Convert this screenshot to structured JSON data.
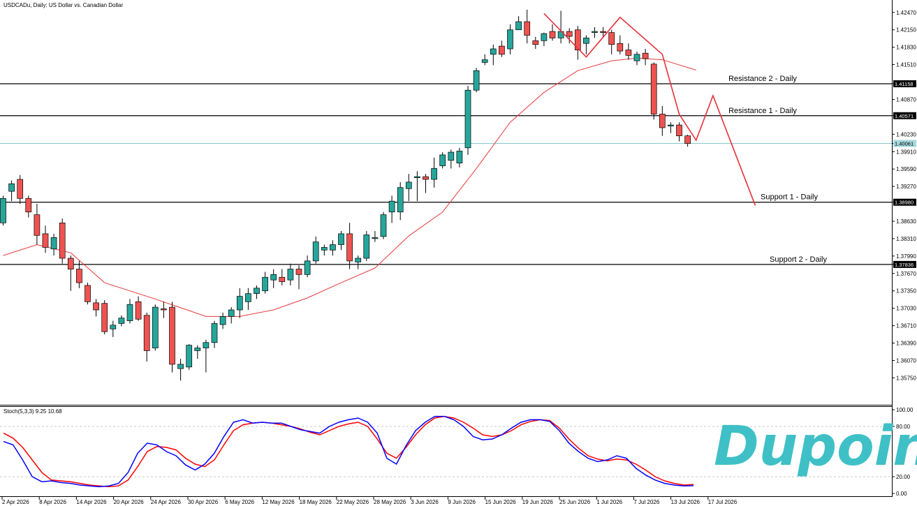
{
  "chart_data": [
    {
      "type": "candlestick",
      "title": "USDCADu, Daily: US Dollar vs. Canadian Dollar",
      "price_axis_ticks": [
        "1.42470",
        "1.42150",
        "1.41830",
        "1.41510",
        "1.41158",
        "1.40870",
        "1.40571",
        "1.40230",
        "1.40061",
        "1.39910",
        "1.39590",
        "1.39270",
        "1.38980",
        "1.38630",
        "1.38310",
        "1.37990",
        "1.37836",
        "1.37670",
        "1.37350",
        "1.37030",
        "1.36710",
        "1.36390",
        "1.36070",
        "1.35750"
      ],
      "time_axis_ticks": [
        "2 Apr 2026",
        "8 Apr 2026",
        "14 Apr 2026",
        "20 Apr 2026",
        "24 Apr 2026",
        "30 Apr 2026",
        "6 May 2026",
        "12 May 2026",
        "18 May 2026",
        "22 May 2026",
        "28 May 2026",
        "3 Jun 2026",
        "9 Jun 2026",
        "15 Jun 2026",
        "19 Jun 2026",
        "25 Jun 2026",
        "1 Jul 2026",
        "7 Jul 2026",
        "13 Jul 2026",
        "17 Jul 2026"
      ],
      "ylim": [
        1.3555,
        1.4257
      ],
      "current_price": "1.40061",
      "levels": [
        {
          "name": "Resistance 2 - Daily",
          "value": 1.41158,
          "tag": "1.41158"
        },
        {
          "name": "Resistance 1 - Daily",
          "value": 1.40571,
          "tag": "1.40571"
        },
        {
          "name": "Support 1 - Daily",
          "value": 1.3898,
          "tag": "1.38980"
        },
        {
          "name": "Support 2 - Daily",
          "value": 1.37836,
          "tag": "1.37836"
        }
      ],
      "candles": [
        [
          1.386,
          1.391,
          1.3855,
          1.3905
        ],
        [
          1.3918,
          1.3938,
          1.39,
          1.3932
        ],
        [
          1.394,
          1.3948,
          1.3895,
          1.3905
        ],
        [
          1.3905,
          1.391,
          1.387,
          1.388
        ],
        [
          1.3875,
          1.3895,
          1.382,
          1.3837
        ],
        [
          1.384,
          1.3855,
          1.3805,
          1.3815
        ],
        [
          1.3812,
          1.384,
          1.38,
          1.3833
        ],
        [
          1.386,
          1.3868,
          1.3785,
          1.3795
        ],
        [
          1.3795,
          1.38,
          1.3735,
          1.3775
        ],
        [
          1.3775,
          1.379,
          1.374,
          1.375
        ],
        [
          1.3745,
          1.375,
          1.371,
          1.3715
        ],
        [
          1.3713,
          1.372,
          1.3688,
          1.37
        ],
        [
          1.3712,
          1.3718,
          1.3655,
          1.366
        ],
        [
          1.3665,
          1.368,
          1.365,
          1.3672
        ],
        [
          1.3675,
          1.369,
          1.367,
          1.3685
        ],
        [
          1.368,
          1.372,
          1.3675,
          1.371
        ],
        [
          1.3715,
          1.3725,
          1.368,
          1.3683
        ],
        [
          1.369,
          1.3695,
          1.3605,
          1.3625
        ],
        [
          1.363,
          1.371,
          1.3625,
          1.3705
        ],
        [
          1.3702,
          1.3715,
          1.3685,
          1.37
        ],
        [
          1.3705,
          1.3715,
          1.3585,
          1.36
        ],
        [
          1.3592,
          1.361,
          1.357,
          1.36
        ],
        [
          1.3595,
          1.3637,
          1.359,
          1.3635
        ],
        [
          1.3625,
          1.3635,
          1.361,
          1.363
        ],
        [
          1.363,
          1.3645,
          1.3585,
          1.364
        ],
        [
          1.364,
          1.368,
          1.363,
          1.3675
        ],
        [
          1.3673,
          1.3695,
          1.3665,
          1.3688
        ],
        [
          1.3688,
          1.3705,
          1.3675,
          1.37
        ],
        [
          1.37,
          1.374,
          1.3685,
          1.3725
        ],
        [
          1.3715,
          1.374,
          1.37,
          1.373
        ],
        [
          1.373,
          1.3745,
          1.372,
          1.374
        ],
        [
          1.3735,
          1.377,
          1.373,
          1.376
        ],
        [
          1.3755,
          1.3775,
          1.374,
          1.3765
        ],
        [
          1.376,
          1.3775,
          1.3745,
          1.3752
        ],
        [
          1.3755,
          1.3785,
          1.3745,
          1.3775
        ],
        [
          1.3775,
          1.3782,
          1.3738,
          1.3765
        ],
        [
          1.3765,
          1.38,
          1.376,
          1.379
        ],
        [
          1.379,
          1.3835,
          1.3785,
          1.3825
        ],
        [
          1.381,
          1.382,
          1.38,
          1.3815
        ],
        [
          1.381,
          1.3828,
          1.38,
          1.382
        ],
        [
          1.382,
          1.3845,
          1.381,
          1.384
        ],
        [
          1.384,
          1.386,
          1.3775,
          1.379
        ],
        [
          1.3788,
          1.38,
          1.3775,
          1.3795
        ],
        [
          1.3795,
          1.3845,
          1.379,
          1.3838
        ],
        [
          1.3833,
          1.3845,
          1.3825,
          1.3833
        ],
        [
          1.3835,
          1.388,
          1.383,
          1.3875
        ],
        [
          1.388,
          1.391,
          1.386,
          1.39
        ],
        [
          1.388,
          1.3935,
          1.3865,
          1.3925
        ],
        [
          1.3923,
          1.395,
          1.39,
          1.3935
        ],
        [
          1.3945,
          1.3955,
          1.39,
          1.3945
        ],
        [
          1.3945,
          1.395,
          1.3915,
          1.394
        ],
        [
          1.394,
          1.398,
          1.3925,
          1.396
        ],
        [
          1.3965,
          1.399,
          1.396,
          1.3985
        ],
        [
          1.3975,
          1.3995,
          1.396,
          1.399
        ],
        [
          1.397,
          1.3998,
          1.3962,
          1.3992
        ],
        [
          1.3998,
          1.4112,
          1.3985,
          1.4104
        ],
        [
          1.4104,
          1.4145,
          1.41,
          1.414
        ],
        [
          1.4155,
          1.417,
          1.415,
          1.416
        ],
        [
          1.417,
          1.4188,
          1.415,
          1.418
        ],
        [
          1.4185,
          1.4195,
          1.4165,
          1.417
        ],
        [
          1.418,
          1.4225,
          1.417,
          1.4215
        ],
        [
          1.4215,
          1.424,
          1.4215,
          1.423
        ],
        [
          1.423,
          1.4252,
          1.419,
          1.4205
        ],
        [
          1.4195,
          1.4202,
          1.418,
          1.4188
        ],
        [
          1.4195,
          1.421,
          1.4185,
          1.4208
        ],
        [
          1.4212,
          1.4225,
          1.4195,
          1.42
        ],
        [
          1.42,
          1.425,
          1.419,
          1.4212
        ],
        [
          1.4212,
          1.4218,
          1.419,
          1.4203
        ],
        [
          1.4215,
          1.4222,
          1.416,
          1.4178
        ],
        [
          1.419,
          1.4205,
          1.417,
          1.42
        ],
        [
          1.421,
          1.422,
          1.42,
          1.4212
        ],
        [
          1.4212,
          1.422,
          1.42,
          1.421
        ],
        [
          1.421,
          1.4215,
          1.417,
          1.4188
        ],
        [
          1.419,
          1.4205,
          1.417,
          1.4176
        ],
        [
          1.4178,
          1.419,
          1.416,
          1.4168
        ],
        [
          1.4158,
          1.4175,
          1.415,
          1.417
        ],
        [
          1.4172,
          1.418,
          1.415,
          1.4162
        ],
        [
          1.4152,
          1.4155,
          1.405,
          1.406
        ],
        [
          1.406,
          1.4075,
          1.402,
          1.4035
        ],
        [
          1.404,
          1.4045,
          1.4025,
          1.404
        ],
        [
          1.404,
          1.4045,
          1.401,
          1.402
        ],
        [
          1.402,
          1.4022,
          1.4,
          1.4006
        ]
      ],
      "moving_average": [
        [
          0,
          1.38
        ],
        [
          4,
          1.382
        ],
        [
          8,
          1.3805
        ],
        [
          12,
          1.375
        ],
        [
          18,
          1.372
        ],
        [
          24,
          1.3688
        ],
        [
          28,
          1.3688
        ],
        [
          32,
          1.37
        ],
        [
          36,
          1.3722
        ],
        [
          40,
          1.375
        ],
        [
          44,
          1.3777
        ],
        [
          48,
          1.3836
        ],
        [
          52,
          1.388
        ],
        [
          56,
          1.396
        ],
        [
          60,
          1.4045
        ],
        [
          64,
          1.41
        ],
        [
          68,
          1.414
        ],
        [
          72,
          1.4158
        ],
        [
          75,
          1.4163
        ],
        [
          78,
          1.416
        ],
        [
          82,
          1.4141
        ]
      ],
      "zigzag": [
        [
          64,
          1.4245
        ],
        [
          69,
          1.4165
        ],
        [
          73,
          1.4238
        ],
        [
          78,
          1.417
        ],
        [
          80,
          1.406
        ],
        [
          82,
          1.4012
        ],
        [
          84,
          1.4094
        ],
        [
          89,
          1.3892
        ]
      ]
    },
    {
      "type": "line",
      "title": "Stoch(5,3,3) 9.25 10.68",
      "y_axis_ticks": [
        "100.00",
        "80.00",
        "20.00",
        "0.00"
      ],
      "ylim": [
        0,
        100
      ],
      "series": [
        {
          "name": "9.25",
          "color": "#0000ff",
          "values": [
            62,
            58,
            40,
            20,
            14,
            15,
            13,
            12,
            10,
            9,
            8,
            9,
            12,
            25,
            48,
            60,
            58,
            50,
            45,
            34,
            28,
            35,
            48,
            68,
            85,
            88,
            84,
            85,
            84,
            84,
            80,
            76,
            74,
            72,
            80,
            85,
            88,
            90,
            85,
            72,
            42,
            35,
            57,
            75,
            85,
            92,
            92,
            88,
            80,
            68,
            64,
            65,
            70,
            78,
            85,
            88,
            88,
            86,
            75,
            60,
            50,
            42,
            38,
            40,
            45,
            42,
            30,
            22,
            16,
            12,
            10,
            9,
            9.25
          ]
        },
        {
          "name": "10.68",
          "color": "#ff0000",
          "values": [
            72,
            66,
            55,
            40,
            25,
            16,
            15,
            14,
            12,
            10,
            9,
            8,
            9,
            16,
            32,
            50,
            56,
            55,
            52,
            42,
            35,
            32,
            40,
            58,
            75,
            82,
            84,
            85,
            84,
            82,
            80,
            77,
            73,
            70,
            75,
            80,
            83,
            85,
            80,
            65,
            48,
            42,
            55,
            70,
            82,
            90,
            92,
            90,
            85,
            78,
            70,
            68,
            70,
            75,
            82,
            86,
            88,
            87,
            78,
            65,
            54,
            45,
            41,
            39,
            41,
            40,
            35,
            28,
            20,
            15,
            12,
            10,
            10.68
          ]
        }
      ]
    }
  ],
  "watermark": "Dupoin"
}
